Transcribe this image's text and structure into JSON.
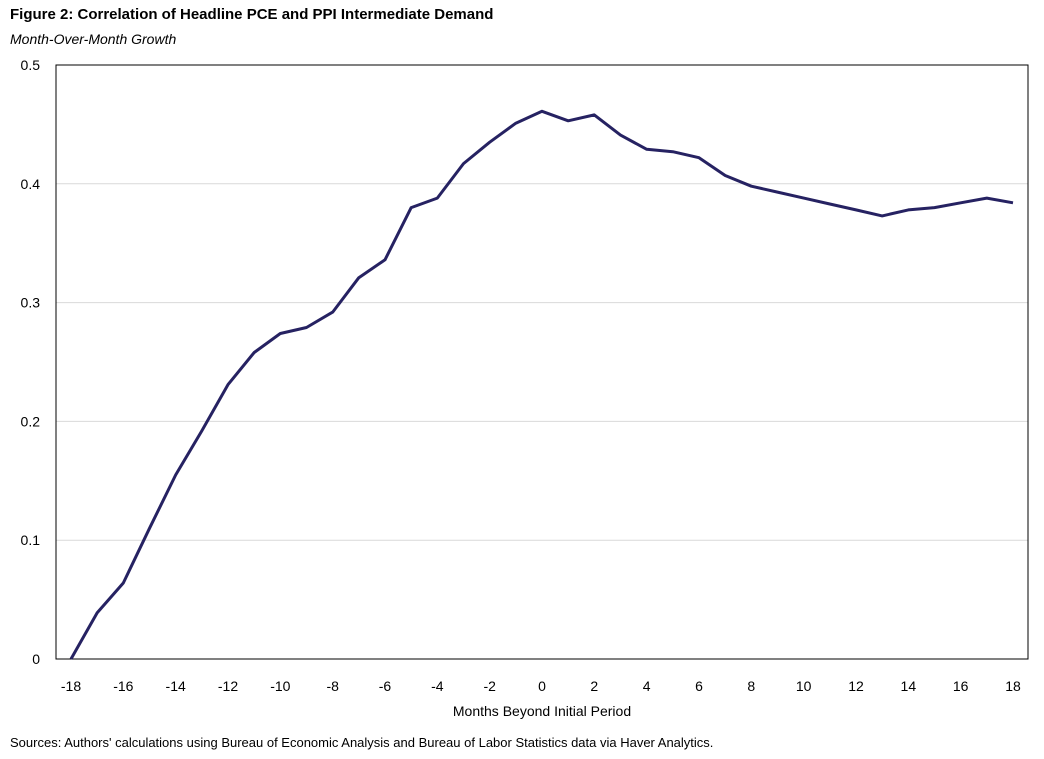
{
  "chart_data": {
    "type": "line",
    "title": "Figure 2: Correlation of Headline PCE and PPI Intermediate Demand",
    "subtitle": "Month-Over-Month Growth",
    "xlabel": "Months  Beyond Initial Period",
    "ylabel": "",
    "source": "Sources: Authors' calculations using Bureau of Economic Analysis and Bureau of Labor Statistics data via Haver Analytics.",
    "xlim": [
      -18,
      18
    ],
    "ylim": [
      0,
      0.5
    ],
    "x_ticks": [
      "-18",
      "-16",
      "-14",
      "-12",
      "-10",
      "-8",
      "-6",
      "-4",
      "-2",
      "0",
      "2",
      "4",
      "6",
      "8",
      "10",
      "12",
      "14",
      "16",
      "18"
    ],
    "y_ticks": [
      "0",
      "0.1",
      "0.2",
      "0.3",
      "0.4",
      "0.5"
    ],
    "grid": true,
    "series": [
      {
        "color": "#262262",
        "x": [
          -18,
          -17,
          -16,
          -15,
          -14,
          -13,
          -12,
          -11,
          -10,
          -9,
          -8,
          -7,
          -6,
          -5,
          -4,
          -3,
          -2,
          -1,
          0,
          1,
          2,
          3,
          4,
          5,
          6,
          7,
          8,
          9,
          10,
          11,
          12,
          13,
          14,
          15,
          16,
          17,
          18
        ],
        "values": [
          0.0,
          0.039,
          0.064,
          0.11,
          0.155,
          0.192,
          0.231,
          0.258,
          0.274,
          0.279,
          0.292,
          0.321,
          0.336,
          0.38,
          0.388,
          0.417,
          0.435,
          0.451,
          0.461,
          0.453,
          0.458,
          0.441,
          0.429,
          0.427,
          0.422,
          0.407,
          0.398,
          0.393,
          0.388,
          0.383,
          0.378,
          0.373,
          0.378,
          0.38,
          0.384,
          0.388,
          0.384
        ]
      }
    ]
  }
}
